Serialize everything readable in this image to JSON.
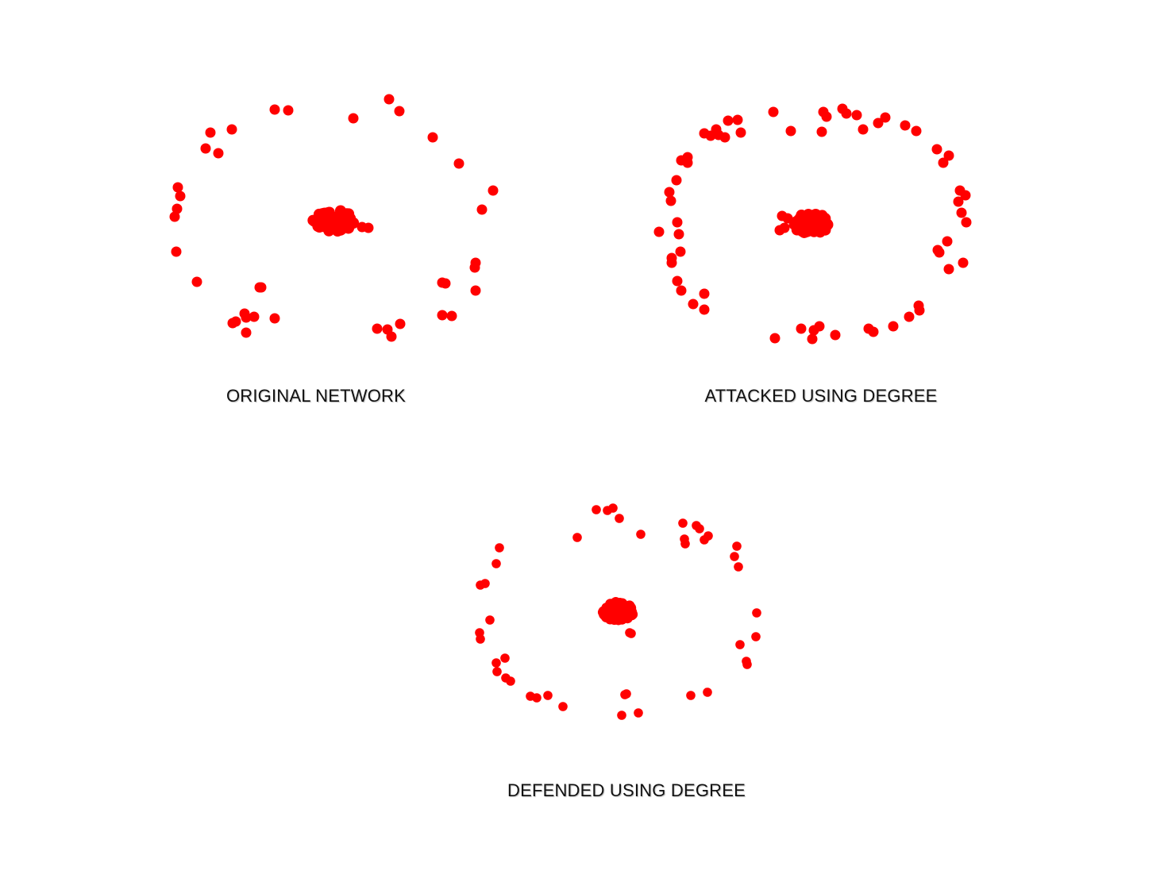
{
  "node_color": "#ff0000",
  "panels": {
    "original": {
      "caption": "ORIGINAL NETWORK"
    },
    "attacked": {
      "caption": "ATTACKED USING DEGREE"
    },
    "defended": {
      "caption": "DEFENDED USING DEGREE"
    }
  }
}
